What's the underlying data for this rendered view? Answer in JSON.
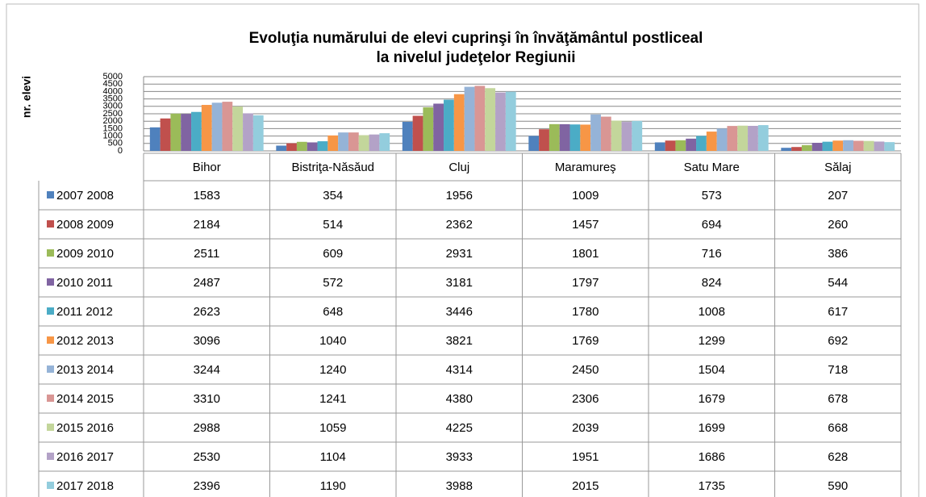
{
  "chart_data": {
    "type": "bar",
    "title": [
      "Evoluţia numărului de elevi cuprinşi în învăţământul postliceal",
      "la nivelul judeţelor Regiunii"
    ],
    "y_label": "nr. elevi",
    "categories": [
      "Bihor",
      "Bistriţa-Năsăud",
      "Cluj",
      "Maramureş",
      "Satu Mare",
      "Sălaj"
    ],
    "ylim": [
      0,
      5000
    ],
    "yticks": [
      0,
      500,
      1000,
      1500,
      2000,
      2500,
      3000,
      3500,
      4000,
      4500,
      5000
    ],
    "grid": true,
    "series": [
      {
        "name": "2007 2008",
        "color": "#4F81BD",
        "values": [
          1583,
          354,
          1956,
          1009,
          573,
          207
        ]
      },
      {
        "name": "2008 2009",
        "color": "#C0504D",
        "values": [
          2184,
          514,
          2362,
          1457,
          694,
          260
        ]
      },
      {
        "name": "2009 2010",
        "color": "#9BBB59",
        "values": [
          2511,
          609,
          2931,
          1801,
          716,
          386
        ]
      },
      {
        "name": "2010 2011",
        "color": "#8064A2",
        "values": [
          2487,
          572,
          3181,
          1797,
          824,
          544
        ]
      },
      {
        "name": "2011 2012",
        "color": "#4BACC6",
        "values": [
          2623,
          648,
          3446,
          1780,
          1008,
          617
        ]
      },
      {
        "name": "2012 2013",
        "color": "#F79646",
        "values": [
          3096,
          1040,
          3821,
          1769,
          1299,
          692
        ]
      },
      {
        "name": "2013 2014",
        "color": "#95B3D7",
        "values": [
          3244,
          1240,
          4314,
          2450,
          1504,
          718
        ]
      },
      {
        "name": "2014 2015",
        "color": "#D99694",
        "values": [
          3310,
          1241,
          4380,
          2306,
          1679,
          678
        ]
      },
      {
        "name": "2015 2016",
        "color": "#C3D69B",
        "values": [
          2988,
          1059,
          4225,
          2039,
          1699,
          668
        ]
      },
      {
        "name": "2016 2017",
        "color": "#B3A2C7",
        "values": [
          2530,
          1104,
          3933,
          1951,
          1686,
          628
        ]
      },
      {
        "name": "2017 2018",
        "color": "#93CDDD",
        "values": [
          2396,
          1190,
          3988,
          2015,
          1735,
          590
        ]
      }
    ]
  }
}
